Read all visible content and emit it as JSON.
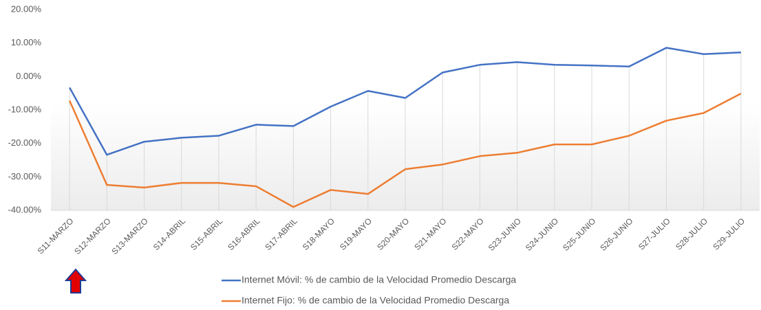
{
  "chart_data": {
    "type": "line",
    "categories": [
      "S11-MARZO",
      "S12-MARZO",
      "S13-MARZO",
      "S14-ABRIL",
      "S15-ABRIL",
      "S16-ABRIL",
      "S17-ABRIL",
      "S18-MAYO",
      "S19-MAYO",
      "S20-MAYO",
      "S21-MAYO",
      "S22-MAYO",
      "S23-JUNIO",
      "S24-JUNIO",
      "S25-JUNIO",
      "S26-JUNIO",
      "S27-JULIO",
      "S28-JULIO",
      "S29-JULIO"
    ],
    "series": [
      {
        "name": "Internet Móvil: % de cambio de la Velocidad Promedio Descarga",
        "color": "#4472c4",
        "values": [
          -3.3,
          -23.4,
          -19.5,
          -18.3,
          -17.7,
          -14.4,
          -14.8,
          -9.0,
          -4.3,
          -6.4,
          1.2,
          3.5,
          4.3,
          3.5,
          3.3,
          3.0,
          8.6,
          6.7,
          7.2
        ]
      },
      {
        "name": "Internet Fijo: % de cambio de la Velocidad Promedio Descarga",
        "color": "#ed7d31",
        "values": [
          -7.2,
          -32.4,
          -33.2,
          -31.8,
          -31.8,
          -32.8,
          -39.0,
          -33.9,
          -35.1,
          -27.7,
          -26.3,
          -23.8,
          -22.8,
          -20.3,
          -20.3,
          -17.7,
          -13.2,
          -10.9,
          -5.1
        ]
      }
    ],
    "ylim": [
      -40,
      20
    ],
    "yticks": [
      {
        "value": -40,
        "label": "-40.00%"
      },
      {
        "value": -30,
        "label": "-30.00%"
      },
      {
        "value": -20,
        "label": "-20.00%"
      },
      {
        "value": -10,
        "label": "-10.00%"
      },
      {
        "value": 0,
        "label": "0.00%"
      },
      {
        "value": 10,
        "label": "10.00%"
      },
      {
        "value": 20,
        "label": "20.00%"
      }
    ],
    "legend": "bottom"
  }
}
